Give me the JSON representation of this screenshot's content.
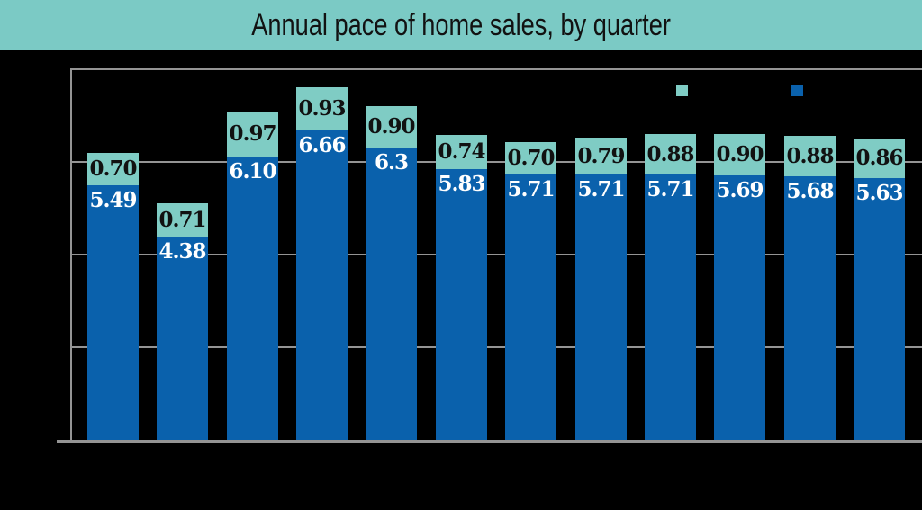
{
  "colors": {
    "background": "#000000",
    "title_bar_bg": "#7BCAC5",
    "title_text": "#121212",
    "teal": "#7FCCC4",
    "blue": "#0A61AC",
    "grid": "#949494",
    "teal_label_text": "#111111",
    "blue_label_text": "#FFFFFF"
  },
  "legend": {
    "position": "top-right",
    "labels_visible": false,
    "swatches": [
      {
        "name": "teal-series-swatch",
        "color": "#7FCCC4"
      },
      {
        "name": "blue-series-swatch",
        "color": "#0A61AC"
      }
    ]
  },
  "chart_data": {
    "type": "bar",
    "stacked": true,
    "title": "Annual pace of home sales, by quarter",
    "bar_count": 12,
    "grid": true,
    "legend_position": "top-right",
    "x_axis": {
      "tick_labels_visible": false
    },
    "y_axis": {
      "min": 0,
      "max": 8,
      "gridline_step": 2,
      "tick_labels_visible": false
    },
    "series": [
      {
        "name": "series-blue-bottom",
        "color": "#0A61AC",
        "label_color": "#FFFFFF",
        "values": [
          5.49,
          4.38,
          6.1,
          6.66,
          6.3,
          5.83,
          5.71,
          5.71,
          5.71,
          5.69,
          5.68,
          5.63
        ],
        "labels": [
          "5.49",
          "4.38",
          "6.10",
          "6.66",
          "6.3",
          "5.83",
          "5.71",
          "5.71",
          "5.71",
          "5.69",
          "5.68",
          "5.63"
        ]
      },
      {
        "name": "series-teal-top",
        "color": "#7FCCC4",
        "label_color": "#111111",
        "values": [
          0.7,
          0.71,
          0.97,
          0.93,
          0.9,
          0.74,
          0.7,
          0.79,
          0.88,
          0.9,
          0.88,
          0.86
        ],
        "labels": [
          "0.70",
          "0.71",
          "0.97",
          "0.93",
          "0.90",
          "0.74",
          "0.70",
          "0.79",
          "0.88",
          "0.90",
          "0.88",
          "0.86"
        ]
      }
    ]
  }
}
